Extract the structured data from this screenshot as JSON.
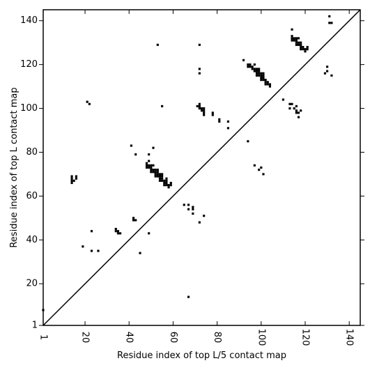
{
  "chart_data": {
    "type": "scatter",
    "title": "",
    "xlabel": "Residue index of top L/5 contact map",
    "ylabel": "Residue index of top L contact map",
    "xlim": [
      1,
      145
    ],
    "ylim": [
      1,
      145
    ],
    "xticks": [
      1,
      20,
      40,
      60,
      80,
      100,
      120,
      140
    ],
    "yticks": [
      1,
      20,
      40,
      60,
      80,
      100,
      120,
      140
    ],
    "xtick_labels": [
      "1",
      "20",
      "40",
      "60",
      "80",
      "100",
      "120",
      "140"
    ],
    "ytick_labels": [
      "1",
      "20",
      "40",
      "60",
      "80",
      "100",
      "120",
      "140"
    ],
    "grid": false,
    "diagonal_line": true,
    "marker_color": "#000000",
    "series": [
      {
        "values": [
          [
            1,
            8
          ],
          [
            14,
            66
          ],
          [
            14,
            67
          ],
          [
            14,
            68
          ],
          [
            14,
            69
          ],
          [
            15,
            67
          ],
          [
            16,
            68
          ],
          [
            16,
            69
          ],
          [
            19,
            37
          ],
          [
            21,
            103
          ],
          [
            22,
            102
          ],
          [
            23,
            44
          ],
          [
            23,
            35
          ],
          [
            26,
            35
          ],
          [
            34,
            44
          ],
          [
            34,
            45
          ],
          [
            35,
            43
          ],
          [
            35,
            44
          ],
          [
            36,
            43
          ],
          [
            41,
            83
          ],
          [
            42,
            49
          ],
          [
            42,
            50
          ],
          [
            43,
            49
          ],
          [
            43,
            79
          ],
          [
            45,
            34
          ],
          [
            48,
            73
          ],
          [
            48,
            74
          ],
          [
            48,
            75
          ],
          [
            49,
            73
          ],
          [
            49,
            74
          ],
          [
            49,
            76
          ],
          [
            49,
            79
          ],
          [
            49,
            43
          ],
          [
            50,
            71
          ],
          [
            50,
            72
          ],
          [
            50,
            73
          ],
          [
            50,
            74
          ],
          [
            51,
            71
          ],
          [
            51,
            72
          ],
          [
            51,
            74
          ],
          [
            51,
            82
          ],
          [
            52,
            69
          ],
          [
            52,
            70
          ],
          [
            52,
            71
          ],
          [
            52,
            72
          ],
          [
            53,
            69
          ],
          [
            53,
            70
          ],
          [
            53,
            71
          ],
          [
            53,
            72
          ],
          [
            53,
            129
          ],
          [
            54,
            67
          ],
          [
            54,
            68
          ],
          [
            54,
            69
          ],
          [
            54,
            70
          ],
          [
            55,
            67
          ],
          [
            55,
            68
          ],
          [
            55,
            69
          ],
          [
            55,
            70
          ],
          [
            55,
            101
          ],
          [
            56,
            65
          ],
          [
            56,
            66
          ],
          [
            56,
            67
          ],
          [
            57,
            65
          ],
          [
            57,
            66
          ],
          [
            57,
            67
          ],
          [
            57,
            68
          ],
          [
            58,
            64
          ],
          [
            58,
            65
          ],
          [
            59,
            65
          ],
          [
            59,
            66
          ],
          [
            65,
            56
          ],
          [
            67,
            14
          ],
          [
            67,
            54
          ],
          [
            67,
            56
          ],
          [
            69,
            52
          ],
          [
            69,
            54
          ],
          [
            69,
            55
          ],
          [
            72,
            48
          ],
          [
            74,
            51
          ],
          [
            71,
            101
          ],
          [
            72,
            100
          ],
          [
            72,
            101
          ],
          [
            72,
            102
          ],
          [
            72,
            116
          ],
          [
            72,
            118
          ],
          [
            72,
            129
          ],
          [
            73,
            99
          ],
          [
            73,
            100
          ],
          [
            74,
            97
          ],
          [
            74,
            98
          ],
          [
            74,
            99
          ],
          [
            74,
            100
          ],
          [
            78,
            97
          ],
          [
            78,
            98
          ],
          [
            81,
            94
          ],
          [
            81,
            95
          ],
          [
            85,
            91
          ],
          [
            85,
            94
          ],
          [
            92,
            122
          ],
          [
            94,
            85
          ],
          [
            94,
            119
          ],
          [
            94,
            120
          ],
          [
            95,
            119
          ],
          [
            95,
            120
          ],
          [
            96,
            118
          ],
          [
            96,
            119
          ],
          [
            97,
            74
          ],
          [
            97,
            117
          ],
          [
            97,
            118
          ],
          [
            97,
            120
          ],
          [
            98,
            115
          ],
          [
            98,
            116
          ],
          [
            98,
            117
          ],
          [
            98,
            118
          ],
          [
            99,
            72
          ],
          [
            99,
            115
          ],
          [
            99,
            116
          ],
          [
            99,
            117
          ],
          [
            99,
            118
          ],
          [
            100,
            73
          ],
          [
            100,
            113
          ],
          [
            100,
            114
          ],
          [
            100,
            115
          ],
          [
            100,
            116
          ],
          [
            101,
            70
          ],
          [
            101,
            113
          ],
          [
            101,
            114
          ],
          [
            101,
            115
          ],
          [
            101,
            116
          ],
          [
            102,
            111
          ],
          [
            102,
            112
          ],
          [
            102,
            113
          ],
          [
            103,
            111
          ],
          [
            103,
            112
          ],
          [
            104,
            110
          ],
          [
            104,
            111
          ],
          [
            110,
            104
          ],
          [
            113,
            100
          ],
          [
            113,
            102
          ],
          [
            114,
            102
          ],
          [
            114,
            136
          ],
          [
            114,
            133
          ],
          [
            114,
            132
          ],
          [
            114,
            131
          ],
          [
            115,
            100
          ],
          [
            115,
            131
          ],
          [
            115,
            132
          ],
          [
            116,
            98
          ],
          [
            116,
            99
          ],
          [
            116,
            101
          ],
          [
            116,
            129
          ],
          [
            116,
            130
          ],
          [
            116,
            131
          ],
          [
            116,
            132
          ],
          [
            117,
            96
          ],
          [
            117,
            98
          ],
          [
            117,
            129
          ],
          [
            117,
            130
          ],
          [
            117,
            132
          ],
          [
            118,
            99
          ],
          [
            118,
            127
          ],
          [
            118,
            128
          ],
          [
            118,
            129
          ],
          [
            118,
            130
          ],
          [
            119,
            127
          ],
          [
            119,
            128
          ],
          [
            120,
            126
          ],
          [
            120,
            127
          ],
          [
            121,
            127
          ],
          [
            121,
            128
          ],
          [
            129,
            116
          ],
          [
            130,
            117
          ],
          [
            130,
            119
          ],
          [
            131,
            139
          ],
          [
            131,
            142
          ],
          [
            132,
            115
          ],
          [
            132,
            139
          ]
        ]
      }
    ]
  }
}
